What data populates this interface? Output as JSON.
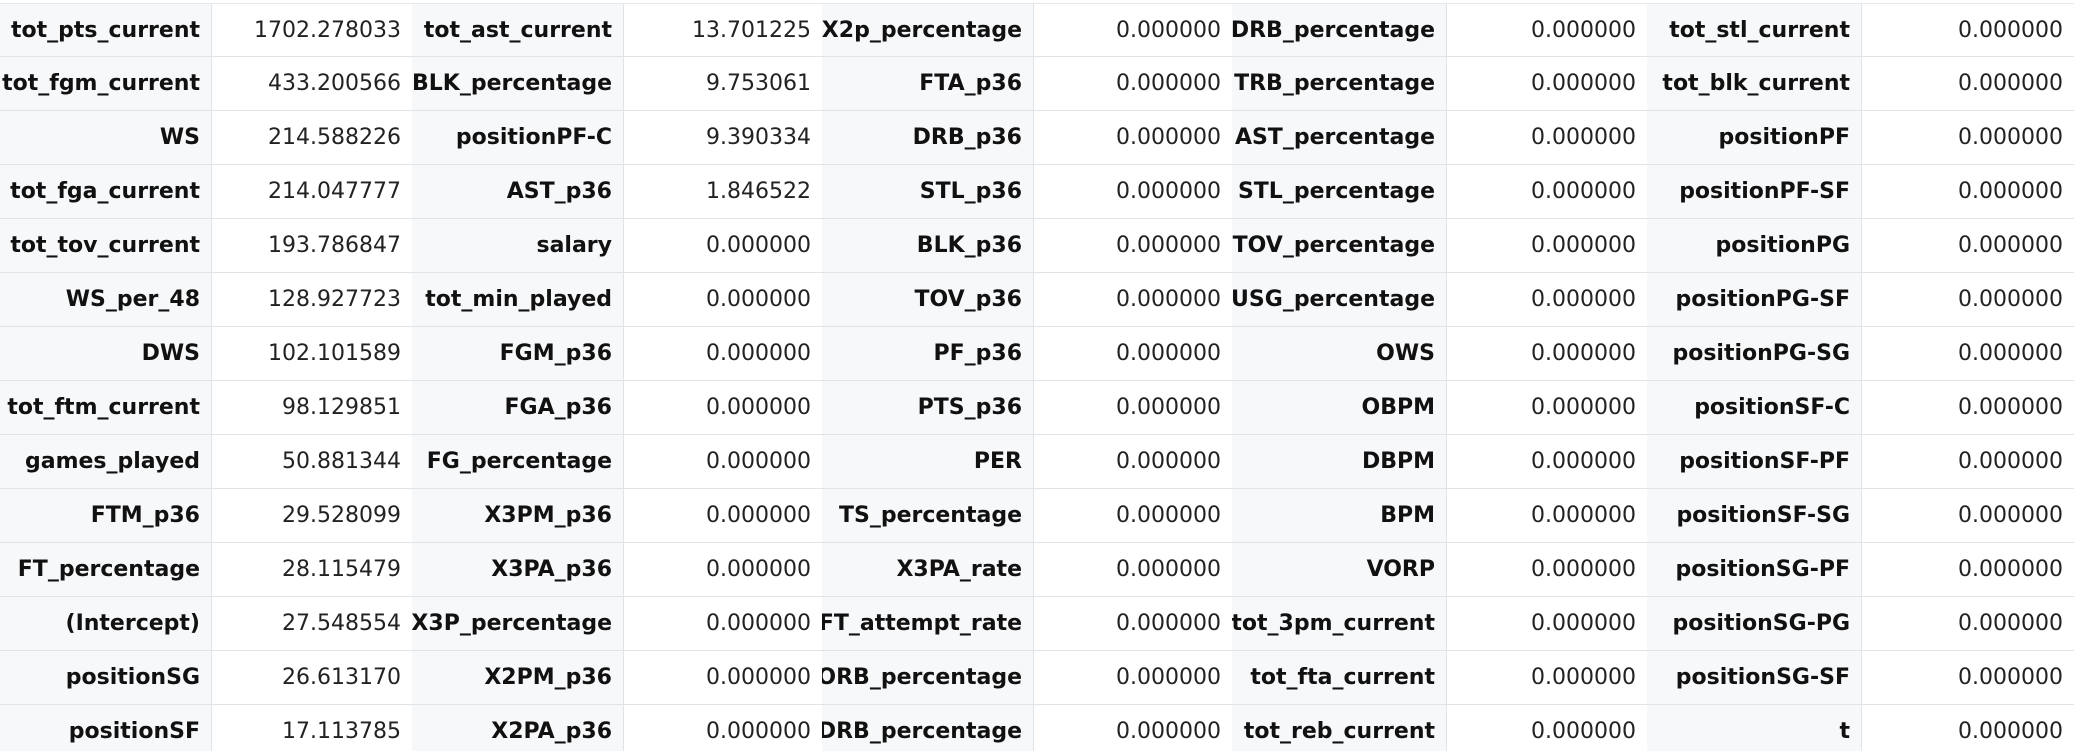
{
  "tables": [
    {
      "rows": [
        {
          "name": "tot_pts_current",
          "value": "1702.278033"
        },
        {
          "name": "tot_fgm_current",
          "value": "433.200566"
        },
        {
          "name": "WS",
          "value": "214.588226"
        },
        {
          "name": "tot_fga_current",
          "value": "214.047777"
        },
        {
          "name": "tot_tov_current",
          "value": "193.786847"
        },
        {
          "name": "WS_per_48",
          "value": "128.927723"
        },
        {
          "name": "DWS",
          "value": "102.101589"
        },
        {
          "name": "tot_ftm_current",
          "value": "98.129851"
        },
        {
          "name": "games_played",
          "value": "50.881344"
        },
        {
          "name": "FTM_p36",
          "value": "29.528099"
        },
        {
          "name": "FT_percentage",
          "value": "28.115479"
        },
        {
          "name": "(Intercept)",
          "value": "27.548554"
        },
        {
          "name": "positionSG",
          "value": "26.613170"
        },
        {
          "name": "positionSF",
          "value": "17.113785"
        }
      ]
    },
    {
      "rows": [
        {
          "name": "tot_ast_current",
          "value": "13.701225"
        },
        {
          "name": "BLK_percentage",
          "value": "9.753061"
        },
        {
          "name": "positionPF-C",
          "value": "9.390334"
        },
        {
          "name": "AST_p36",
          "value": "1.846522"
        },
        {
          "name": "salary",
          "value": "0.000000"
        },
        {
          "name": "tot_min_played",
          "value": "0.000000"
        },
        {
          "name": "FGM_p36",
          "value": "0.000000"
        },
        {
          "name": "FGA_p36",
          "value": "0.000000"
        },
        {
          "name": "FG_percentage",
          "value": "0.000000"
        },
        {
          "name": "X3PM_p36",
          "value": "0.000000"
        },
        {
          "name": "X3PA_p36",
          "value": "0.000000"
        },
        {
          "name": "X3P_percentage",
          "value": "0.000000"
        },
        {
          "name": "X2PM_p36",
          "value": "0.000000"
        },
        {
          "name": "X2PA_p36",
          "value": "0.000000"
        }
      ]
    },
    {
      "rows": [
        {
          "name": "X2p_percentage",
          "value": "0.000000"
        },
        {
          "name": "FTA_p36",
          "value": "0.000000"
        },
        {
          "name": "DRB_p36",
          "value": "0.000000"
        },
        {
          "name": "STL_p36",
          "value": "0.000000"
        },
        {
          "name": "BLK_p36",
          "value": "0.000000"
        },
        {
          "name": "TOV_p36",
          "value": "0.000000"
        },
        {
          "name": "PF_p36",
          "value": "0.000000"
        },
        {
          "name": "PTS_p36",
          "value": "0.000000"
        },
        {
          "name": "PER",
          "value": "0.000000"
        },
        {
          "name": "TS_percentage",
          "value": "0.000000"
        },
        {
          "name": "X3PA_rate",
          "value": "0.000000"
        },
        {
          "name": "FT_attempt_rate",
          "value": "0.000000"
        },
        {
          "name": "ORB_percentage",
          "value": "0.000000"
        },
        {
          "name": "DRB_percentage",
          "value": "0.000000"
        }
      ]
    },
    {
      "rows": [
        {
          "name": "DRB_percentage",
          "value": "0.000000"
        },
        {
          "name": "TRB_percentage",
          "value": "0.000000"
        },
        {
          "name": "AST_percentage",
          "value": "0.000000"
        },
        {
          "name": "STL_percentage",
          "value": "0.000000"
        },
        {
          "name": "TOV_percentage",
          "value": "0.000000"
        },
        {
          "name": "USG_percentage",
          "value": "0.000000"
        },
        {
          "name": "OWS",
          "value": "0.000000"
        },
        {
          "name": "OBPM",
          "value": "0.000000"
        },
        {
          "name": "DBPM",
          "value": "0.000000"
        },
        {
          "name": "BPM",
          "value": "0.000000"
        },
        {
          "name": "VORP",
          "value": "0.000000"
        },
        {
          "name": "tot_3pm_current",
          "value": "0.000000"
        },
        {
          "name": "tot_fta_current",
          "value": "0.000000"
        },
        {
          "name": "tot_reb_current",
          "value": "0.000000"
        }
      ]
    },
    {
      "rows": [
        {
          "name": "tot_stl_current",
          "value": "0.000000"
        },
        {
          "name": "tot_blk_current",
          "value": "0.000000"
        },
        {
          "name": "positionPF",
          "value": "0.000000"
        },
        {
          "name": "positionPF-SF",
          "value": "0.000000"
        },
        {
          "name": "positionPG",
          "value": "0.000000"
        },
        {
          "name": "positionPG-SF",
          "value": "0.000000"
        },
        {
          "name": "positionPG-SG",
          "value": "0.000000"
        },
        {
          "name": "positionSF-C",
          "value": "0.000000"
        },
        {
          "name": "positionSF-PF",
          "value": "0.000000"
        },
        {
          "name": "positionSF-SG",
          "value": "0.000000"
        },
        {
          "name": "positionSG-PF",
          "value": "0.000000"
        },
        {
          "name": "positionSG-PG",
          "value": "0.000000"
        },
        {
          "name": "positionSG-SF",
          "value": "0.000000"
        },
        {
          "name": "t",
          "value": "0.000000"
        }
      ]
    }
  ]
}
